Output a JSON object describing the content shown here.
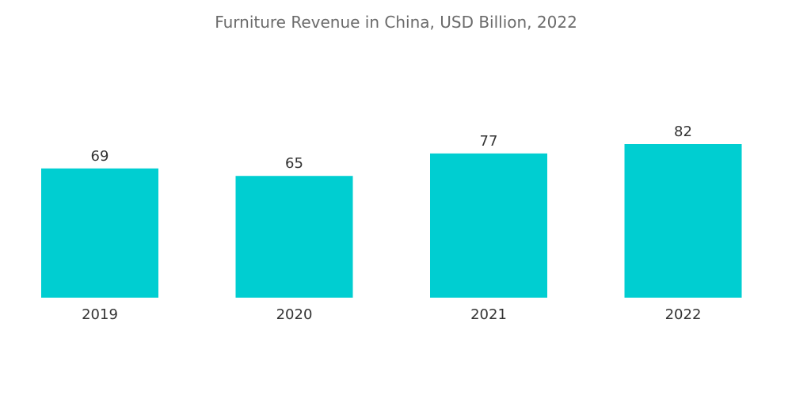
{
  "chart_data": {
    "type": "bar",
    "title": "Furniture Revenue in China, USD Billion, 2022",
    "categories": [
      "2019",
      "2020",
      "2021",
      "2022"
    ],
    "values": [
      69,
      65,
      77,
      82
    ],
    "xlabel": "",
    "ylabel": "",
    "ylim": [
      0,
      82
    ],
    "grid": false,
    "legend": "none",
    "bar_color": "#00CED1"
  }
}
